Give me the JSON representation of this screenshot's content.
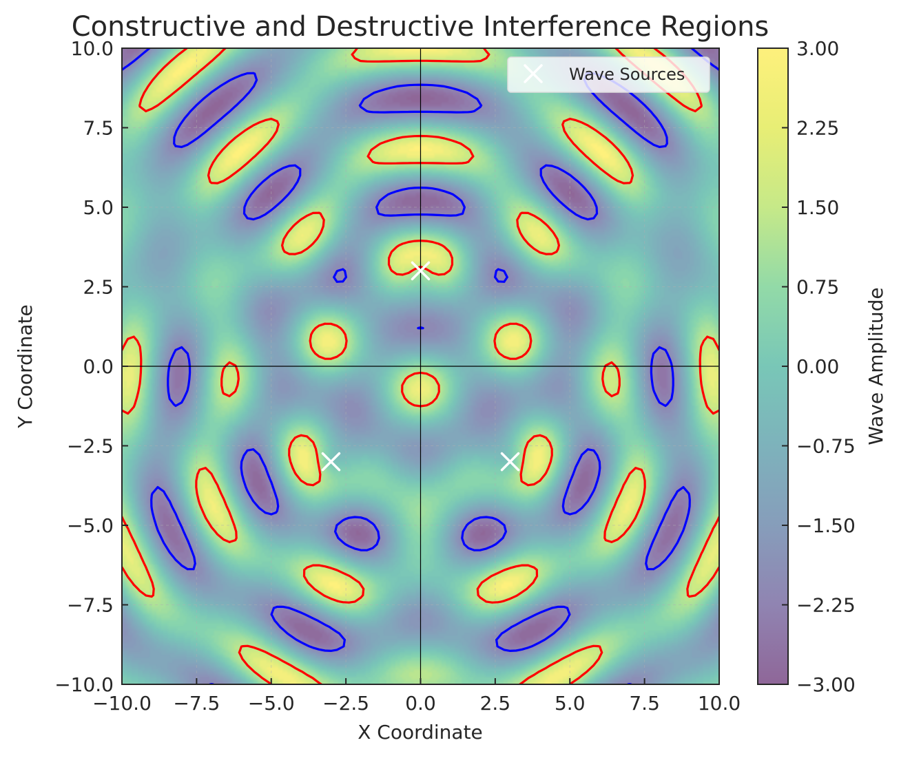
{
  "chart_data": {
    "type": "heatmap",
    "title": "Constructive and Destructive Interference Regions",
    "xlabel": "X Coordinate",
    "ylabel": "Y Coordinate",
    "xlim": [
      -10,
      10
    ],
    "ylim": [
      -10,
      10
    ],
    "x_ticks": [
      -10.0,
      -7.5,
      -5.0,
      -2.5,
      0.0,
      2.5,
      5.0,
      7.5,
      10.0
    ],
    "y_ticks": [
      -10.0,
      -7.5,
      -5.0,
      -2.5,
      0.0,
      2.5,
      5.0,
      7.5,
      10.0
    ],
    "x_tick_labels": [
      "−10.0",
      "−7.5",
      "−5.0",
      "−2.5",
      "0.0",
      "2.5",
      "5.0",
      "7.5",
      "10.0"
    ],
    "y_tick_labels": [
      "−10.0",
      "−7.5",
      "−5.0",
      "−2.5",
      "0.0",
      "2.5",
      "5.0",
      "7.5",
      "10.0"
    ],
    "colorbar": {
      "label": "Wave Amplitude",
      "range": [
        -3.0,
        3.0
      ],
      "ticks": [
        -3.0,
        -2.25,
        -1.5,
        -0.75,
        0.0,
        0.75,
        1.5,
        2.25,
        3.0
      ],
      "tick_labels": [
        "−3.00",
        "−2.25",
        "−1.50",
        "−0.75",
        "0.00",
        "0.75",
        "1.50",
        "2.25",
        "3.00"
      ],
      "colormap": "viridis"
    },
    "field": "sum of sin(2*r_i) for r_i = distance to each wave source",
    "contour_levels": [
      {
        "level": 2.0,
        "color": "#ff0000"
      },
      {
        "level": -2.0,
        "color": "#0000ff"
      }
    ],
    "sources": {
      "name": "Wave Sources",
      "marker": "x",
      "color": "#ffffff",
      "points": [
        {
          "x": 0,
          "y": 3
        },
        {
          "x": -3,
          "y": -3
        },
        {
          "x": 3,
          "y": -3
        }
      ]
    },
    "legend": {
      "position": "top-right",
      "entries": [
        "Wave Sources"
      ]
    },
    "reference_lines": [
      {
        "axis": "x",
        "value": 0
      },
      {
        "axis": "y",
        "value": 0
      }
    ],
    "grid": true
  }
}
